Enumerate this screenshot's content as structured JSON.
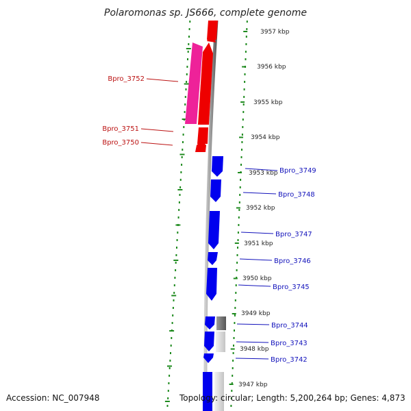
{
  "title": "Polaromonas sp. JS666, complete genome",
  "accession": "Accession: NC_007948",
  "summary": "Topology: circular; Length: 5,200,264 bp; Genes: 4,873",
  "colors": {
    "reverse_gene": "#ee0000",
    "reverse_highlight": "#ee2299",
    "forward_gene": "#0000ee",
    "backbone": "#888888",
    "ruler": "#1e8a1e",
    "forward_label": "#1111bb",
    "reverse_label": "#bb1111"
  },
  "scale_labels": [
    "3957 kbp",
    "3956 kbp",
    "3955 kbp",
    "3954 kbp",
    "3953 kbp",
    "3952 kbp",
    "3951 kbp",
    "3950 kbp",
    "3949 kbp",
    "3948 kbp",
    "3947 kbp"
  ],
  "reverse_genes": [
    {
      "label": "Bpro_3752"
    },
    {
      "label": "Bpro_3751"
    },
    {
      "label": "Bpro_3750"
    }
  ],
  "forward_genes": [
    {
      "label": "Bpro_3749"
    },
    {
      "label": "Bpro_3748"
    },
    {
      "label": "Bpro_3747"
    },
    {
      "label": "Bpro_3746"
    },
    {
      "label": "Bpro_3745"
    },
    {
      "label": "Bpro_3744"
    },
    {
      "label": "Bpro_3743"
    },
    {
      "label": "Bpro_3742"
    }
  ]
}
